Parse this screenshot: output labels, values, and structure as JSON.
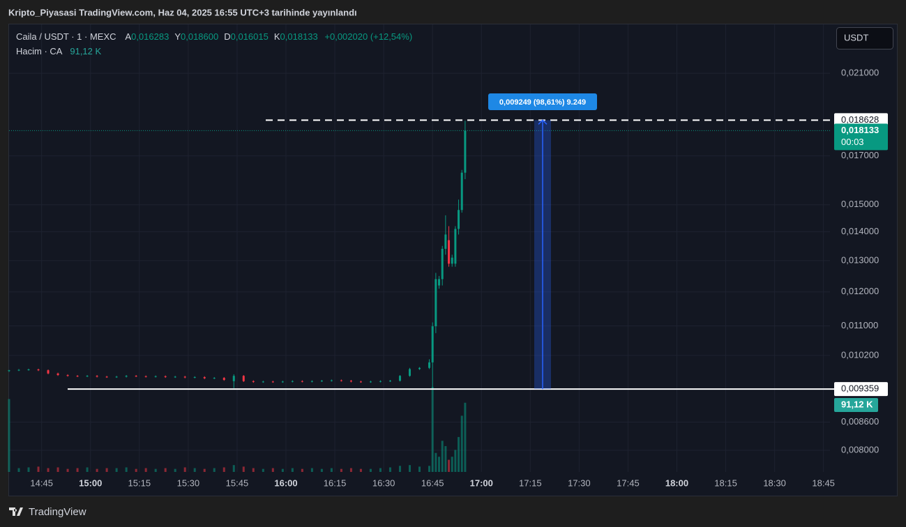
{
  "header": "Kripto_Piyasasi TradingView.com, Haz 04, 2025 16:55 UTC+3 tarihinde yayınlandı",
  "footer": "TradingView",
  "currency_button": "USDT",
  "legend": {
    "symbol": "Caila / USDT · 1 · MEXC",
    "ohlc": [
      {
        "key": "A",
        "value": "0,016283"
      },
      {
        "key": "Y",
        "value": "0,018600"
      },
      {
        "key": "D",
        "value": "0,016015"
      },
      {
        "key": "K",
        "value": "0,018133"
      }
    ],
    "change": "+0,002020 (+12,54%)",
    "volume_name": "Hacim · CA",
    "volume": "91,12 K"
  },
  "chart_data": {
    "type": "candlestick",
    "log_scale": true,
    "up_color": "#089981",
    "down_color": "#f23645",
    "xlim": [
      "14:35",
      "18:47"
    ],
    "ylim": [
      0.00757,
      0.0238
    ],
    "yticks": [
      {
        "value": 0.021,
        "label": "0,021000"
      },
      {
        "value": 0.017,
        "label": "0,017000"
      },
      {
        "value": 0.015,
        "label": "0,015000"
      },
      {
        "value": 0.014,
        "label": "0,014000"
      },
      {
        "value": 0.013,
        "label": "0,013000"
      },
      {
        "value": 0.012,
        "label": "0,012000"
      },
      {
        "value": 0.011,
        "label": "0,011000"
      },
      {
        "value": 0.0102,
        "label": "0,010200"
      },
      {
        "value": 0.0086,
        "label": "0,008600"
      },
      {
        "value": 0.008,
        "label": "0,008000"
      }
    ],
    "xticks": [
      "14:45",
      "15:00",
      "15:15",
      "15:30",
      "15:45",
      "16:00",
      "16:15",
      "16:30",
      "16:45",
      "17:00",
      "17:15",
      "17:30",
      "17:45",
      "18:00",
      "18:15",
      "18:30",
      "18:45"
    ],
    "x": [
      "14:35",
      "14:38",
      "14:41",
      "14:44",
      "14:47",
      "14:50",
      "14:53",
      "14:56",
      "14:59",
      "15:02",
      "15:05",
      "15:08",
      "15:11",
      "15:14",
      "15:17",
      "15:20",
      "15:23",
      "15:26",
      "15:29",
      "15:32",
      "15:35",
      "15:38",
      "15:41",
      "15:44",
      "15:47",
      "15:50",
      "15:53",
      "15:56",
      "15:59",
      "16:02",
      "16:05",
      "16:08",
      "16:11",
      "16:14",
      "16:17",
      "16:20",
      "16:23",
      "16:26",
      "16:29",
      "16:32",
      "16:35",
      "16:38",
      "16:41",
      "16:44",
      "16:45",
      "16:46",
      "16:47",
      "16:48",
      "16:49",
      "16:50",
      "16:51",
      "16:52",
      "16:53",
      "16:54",
      "16:55"
    ],
    "open": [
      0.0098,
      0.00982,
      0.00983,
      0.00984,
      0.00982,
      0.00974,
      0.0097,
      0.00968,
      0.00967,
      0.00968,
      0.00966,
      0.00965,
      0.00966,
      0.00968,
      0.00967,
      0.00966,
      0.00967,
      0.00965,
      0.00966,
      0.00964,
      0.00965,
      0.00962,
      0.00963,
      0.00955,
      0.00968,
      0.00955,
      0.00953,
      0.00954,
      0.00953,
      0.00954,
      0.00955,
      0.00954,
      0.00955,
      0.00956,
      0.00957,
      0.00956,
      0.00954,
      0.00953,
      0.00954,
      0.00955,
      0.00956,
      0.00968,
      0.00985,
      0.00988,
      0.01002,
      0.01099,
      0.0122,
      0.0124,
      0.0134,
      0.0137,
      0.0129,
      0.0129,
      0.0141,
      0.0148,
      0.016283
    ],
    "high": [
      0.00983,
      0.00985,
      0.00986,
      0.00986,
      0.00984,
      0.00976,
      0.00972,
      0.0097,
      0.0097,
      0.0097,
      0.00968,
      0.00968,
      0.0097,
      0.0097,
      0.00969,
      0.00969,
      0.00969,
      0.00968,
      0.00968,
      0.00967,
      0.00967,
      0.00965,
      0.00965,
      0.00972,
      0.0097,
      0.00957,
      0.00956,
      0.00956,
      0.00956,
      0.00957,
      0.00957,
      0.00957,
      0.00958,
      0.00959,
      0.00959,
      0.00958,
      0.00956,
      0.00956,
      0.00957,
      0.00958,
      0.0097,
      0.00988,
      0.0099,
      0.0101,
      0.0111,
      0.0126,
      0.0125,
      0.0135,
      0.0146,
      0.0142,
      0.0132,
      0.0142,
      0.0152,
      0.0164,
      0.0186
    ],
    "low": [
      0.00978,
      0.0098,
      0.00981,
      0.0098,
      0.00972,
      0.00968,
      0.00966,
      0.00965,
      0.00965,
      0.00964,
      0.00963,
      0.00963,
      0.00964,
      0.00965,
      0.00964,
      0.00964,
      0.00963,
      0.00963,
      0.00962,
      0.00962,
      0.0096,
      0.0096,
      0.00956,
      0.00938,
      0.00953,
      0.00951,
      0.00951,
      0.00951,
      0.00951,
      0.00952,
      0.00952,
      0.00952,
      0.00953,
      0.00954,
      0.00954,
      0.00952,
      0.00951,
      0.00951,
      0.00952,
      0.00953,
      0.00954,
      0.00966,
      0.00983,
      0.00985,
      0.00935,
      0.0108,
      0.0121,
      0.0122,
      0.0132,
      0.0128,
      0.0128,
      0.0128,
      0.0139,
      0.0147,
      0.016015
    ],
    "close": [
      0.00982,
      0.00983,
      0.00984,
      0.00982,
      0.00974,
      0.0097,
      0.00968,
      0.00967,
      0.00968,
      0.00966,
      0.00965,
      0.00966,
      0.00968,
      0.00967,
      0.00966,
      0.00967,
      0.00965,
      0.00966,
      0.00964,
      0.00965,
      0.00962,
      0.00963,
      0.00958,
      0.00968,
      0.00955,
      0.00953,
      0.00954,
      0.00953,
      0.00954,
      0.00955,
      0.00954,
      0.00955,
      0.00956,
      0.00957,
      0.00956,
      0.00954,
      0.00953,
      0.00954,
      0.00955,
      0.00956,
      0.00968,
      0.00985,
      0.00988,
      0.01002,
      0.01099,
      0.0124,
      0.0124,
      0.0134,
      0.0139,
      0.0129,
      0.0131,
      0.0141,
      0.0148,
      0.016283,
      0.018133
    ],
    "volume": [
      96000,
      5000,
      6000,
      7000,
      5000,
      6000,
      4000,
      5000,
      6000,
      4000,
      5000,
      5000,
      6000,
      4000,
      5000,
      4000,
      5000,
      4000,
      6000,
      5000,
      4000,
      5000,
      6000,
      9000,
      7000,
      5000,
      4000,
      5000,
      4000,
      5000,
      4000,
      5000,
      4000,
      5000,
      4000,
      5000,
      4000,
      4000,
      5000,
      6000,
      8000,
      9000,
      7000,
      8000,
      112000,
      25000,
      20000,
      41000,
      34000,
      16000,
      20000,
      29000,
      46000,
      74000,
      91120
    ],
    "lines": [
      {
        "value": 0.018628,
        "label": "0,018628",
        "style": "dashed"
      },
      {
        "value": 0.009359,
        "label": "0,009359",
        "style": "solid"
      }
    ],
    "last_price": {
      "value": 0.018133,
      "label": "0,018133",
      "countdown": "00:03"
    },
    "measure_label": "0,009249 (98,61%) 9.249"
  }
}
